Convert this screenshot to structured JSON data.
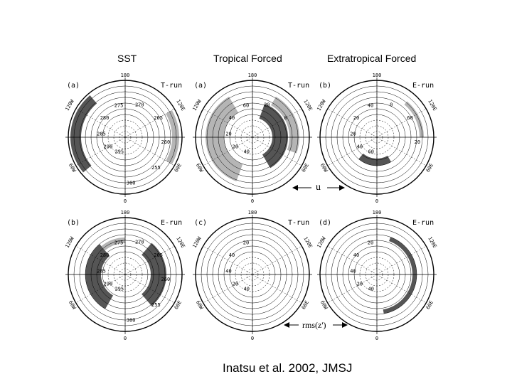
{
  "columns": {
    "sst": "SST",
    "tropical": "Tropical Forced",
    "extratropical": "Extratropical Forced"
  },
  "panels": [
    {
      "id": "sst-t",
      "letter": "(a)",
      "run": "T-run",
      "contours": [
        "295",
        "290",
        "285",
        "280",
        "275",
        "270",
        "265",
        "260",
        "255",
        "300"
      ]
    },
    {
      "id": "trop-u",
      "letter": "(a)",
      "run": "T-run",
      "contours": [
        "40",
        "20",
        "20",
        "40",
        "60",
        "20",
        "0"
      ]
    },
    {
      "id": "extra-u",
      "letter": "(b)",
      "run": "E-run",
      "contours": [
        "60",
        "40",
        "20",
        "20",
        "40",
        "0",
        "60",
        "20"
      ]
    },
    {
      "id": "sst-e",
      "letter": "(b)",
      "run": "E-run",
      "contours": [
        "295",
        "290",
        "285",
        "280",
        "275",
        "270",
        "265",
        "260",
        "255",
        "300"
      ]
    },
    {
      "id": "trop-rms",
      "letter": "(c)",
      "run": "T-run",
      "contours": [
        "40",
        "20",
        "40",
        "40",
        "20"
      ]
    },
    {
      "id": "extra-rms",
      "letter": "(d)",
      "run": "E-run",
      "contours": [
        "40",
        "20",
        "40",
        "40",
        "20"
      ]
    }
  ],
  "ticks": {
    "top": "180",
    "bottom": "0",
    "upper_left": "120W",
    "upper_right": "120E",
    "lower_left": "60W",
    "lower_right": "60E"
  },
  "labels": {
    "u": "u",
    "rms": "rms(z')"
  },
  "citation": "Inatsu et al. 2002, JMSJ",
  "colors": {
    "dark_shade": "#555555",
    "light_shade": "#b5b5b5",
    "ink": "#000000"
  }
}
